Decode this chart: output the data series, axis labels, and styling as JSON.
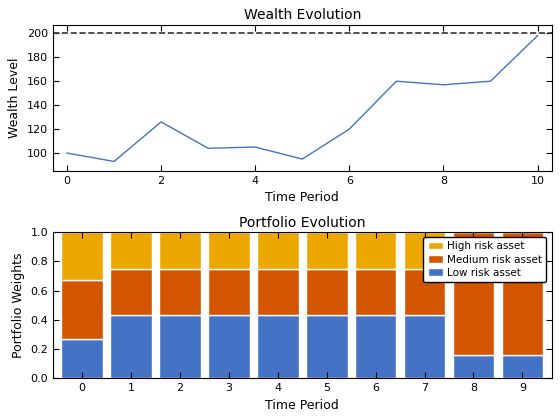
{
  "wealth_x": [
    0,
    1,
    2,
    3,
    4,
    5,
    6,
    7,
    8,
    9,
    10
  ],
  "wealth_y": [
    100,
    93,
    126,
    104,
    105,
    95,
    120,
    160,
    157,
    160,
    198
  ],
  "wealth_hline": 200,
  "wealth_title": "Wealth Evolution",
  "wealth_xlabel": "Time Period",
  "wealth_ylabel": "Wealth Level",
  "wealth_xlim": [
    -0.3,
    10.3
  ],
  "wealth_ylim": [
    85,
    207
  ],
  "wealth_line_color": "#4472C4",
  "wealth_hline_color": "#333333",
  "wealth_xticks": [
    0,
    2,
    4,
    6,
    8,
    10
  ],
  "wealth_yticks": [
    100,
    120,
    140,
    160,
    180,
    200
  ],
  "portfolio_categories": [
    0,
    1,
    2,
    3,
    4,
    5,
    6,
    7,
    8,
    9
  ],
  "low_risk": [
    0.27,
    0.43,
    0.43,
    0.43,
    0.43,
    0.43,
    0.43,
    0.43,
    0.16,
    0.16
  ],
  "medium_risk": [
    0.4,
    0.32,
    0.32,
    0.32,
    0.32,
    0.32,
    0.32,
    0.32,
    0.84,
    0.84
  ],
  "high_risk": [
    0.33,
    0.25,
    0.25,
    0.25,
    0.25,
    0.25,
    0.25,
    0.25,
    0.0,
    0.0
  ],
  "low_color": "#4472C4",
  "medium_color": "#D45500",
  "high_color": "#ECA800",
  "portfolio_title": "Portfolio Evolution",
  "portfolio_xlabel": "Time Period",
  "portfolio_ylabel": "Portfolio Weights",
  "portfolio_ylim": [
    0,
    1.0
  ],
  "portfolio_yticks": [
    0,
    0.2,
    0.4,
    0.6,
    0.8,
    1.0
  ],
  "legend_labels": [
    "High risk asset",
    "Medium risk asset",
    "Low risk asset"
  ],
  "bar_width": 0.85,
  "bar_edge_color": "white",
  "bar_edge_width": 1.0
}
